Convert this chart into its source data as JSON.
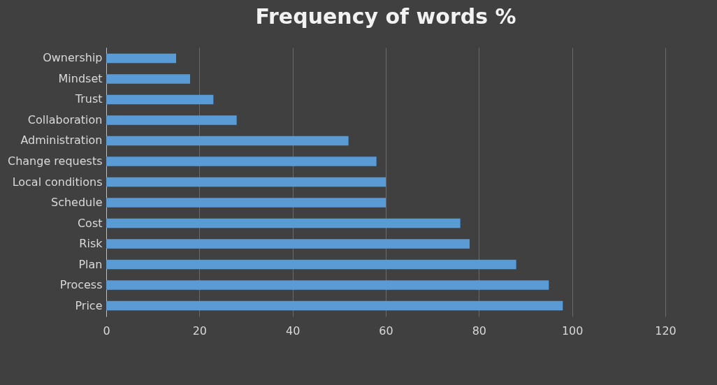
{
  "chart_data": {
    "type": "bar",
    "title": "Frequency of words %",
    "orientation": "horizontal",
    "categories": [
      "Ownership",
      "Mindset",
      "Trust",
      "Collaboration",
      "Administration",
      "Change requests",
      "Local conditions",
      "Schedule",
      "Cost",
      "Risk",
      "Plan",
      "Process",
      "Price"
    ],
    "values": [
      15,
      18,
      23,
      28,
      52,
      58,
      60,
      60,
      76,
      78,
      88,
      95,
      98
    ],
    "color": "#5b9bd5",
    "xlim": [
      0,
      120
    ],
    "xticks": [
      0,
      20,
      40,
      60,
      80,
      100,
      120
    ],
    "grid": "x"
  }
}
